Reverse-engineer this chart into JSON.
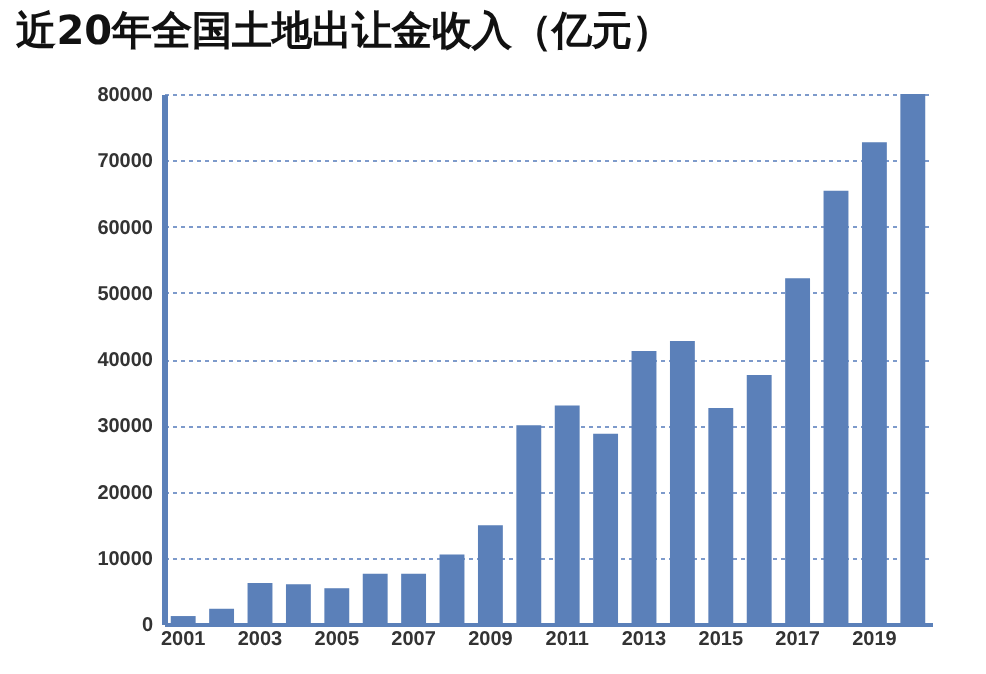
{
  "chart_data": {
    "type": "bar",
    "title": "近20年全国土地出让金收入（亿元）",
    "categories": [
      "2001",
      null,
      "2003",
      null,
      "2005",
      null,
      "2007",
      null,
      "2009",
      null,
      "2011",
      null,
      "2013",
      null,
      "2015",
      null,
      "2017",
      null,
      "2019",
      null
    ],
    "values": [
      1200,
      2300,
      6200,
      6000,
      5400,
      7600,
      7600,
      10500,
      14900,
      30000,
      33000,
      28700,
      41200,
      42700,
      32600,
      37600,
      52200,
      65400,
      72700,
      80000
    ],
    "color": "#5b80b9",
    "ylim": [
      0,
      80000
    ],
    "yticks": [
      0,
      10000,
      20000,
      30000,
      40000,
      50000,
      60000,
      70000,
      80000
    ],
    "grid": "y"
  }
}
